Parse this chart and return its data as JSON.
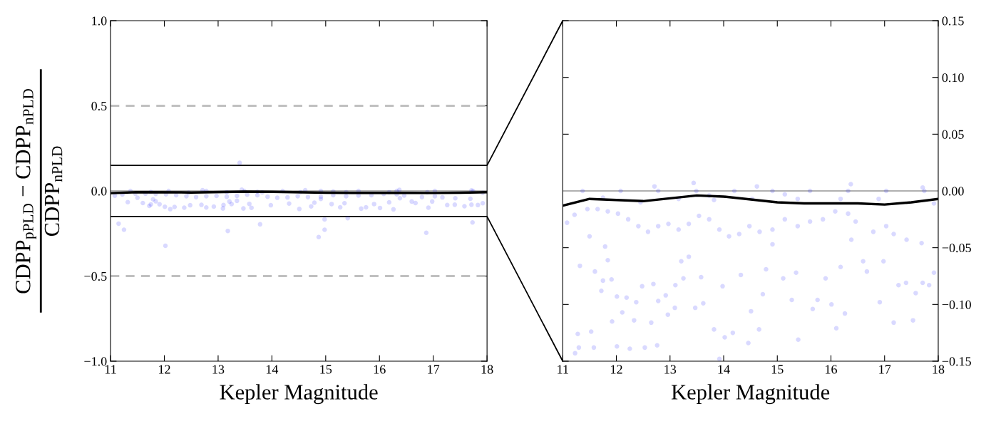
{
  "chart_data": [
    {
      "type": "scatter",
      "xlabel": "Kepler Magnitude",
      "ylabel": "CDPP$_{pPLD}$ − CDPP$_{nPLD}$\nCDPP$_{nPLD}$",
      "xlim": [
        11,
        18
      ],
      "xticks": [
        11,
        12,
        13,
        14,
        15,
        16,
        17,
        18
      ],
      "ylim": [
        -1.0,
        1.0
      ],
      "yticks": [
        {
          "value": -1.0,
          "label": "−1.0"
        },
        {
          "value": -0.5,
          "label": "−0.5"
        },
        {
          "value": 0.0,
          "label": "0.0"
        },
        {
          "value": 0.5,
          "label": "0.5"
        },
        {
          "value": 1.0,
          "label": "1.0"
        }
      ],
      "ref_lines": [
        {
          "axis": "y",
          "value": 0.5,
          "color": "#c0c0c0",
          "line_style": "dashed"
        },
        {
          "axis": "y",
          "value": -0.5,
          "color": "#c0c0c0",
          "line_style": "dashed"
        },
        {
          "axis": "y",
          "value": 0.0,
          "color": "#b0b0b0",
          "line_style": "solid"
        },
        {
          "axis": "y",
          "value": 0.15,
          "color": "#000000",
          "line_style": "solid"
        },
        {
          "axis": "y",
          "value": -0.15,
          "color": "#000000",
          "line_style": "solid"
        }
      ],
      "series": [
        {
          "color": "#0000ff",
          "marker": "circle",
          "x": [
            13.4,
            11.15,
            11.25,
            13.18,
            13.78,
            14.87,
            14.98,
            14.98,
            15.41,
            16.87,
            17.73,
            12.02,
            11.08,
            11.22,
            11.32,
            11.5,
            11.6,
            11.72,
            11.75,
            11.79,
            11.84,
            11.91,
            12.01,
            12.11,
            12.19,
            12.37,
            12.48,
            12.69,
            12.78,
            12.92,
            13.09,
            13.1,
            13.25,
            13.21,
            13.35,
            13.47,
            13.58,
            13.62,
            13.98,
            14.32,
            14.51,
            14.73,
            14.79,
            14.91,
            15.11,
            15.27,
            15.35,
            15.66,
            15.75,
            15.9,
            16.01,
            16.26,
            16.18,
            16.38,
            16.6,
            16.67,
            16.91,
            16.98,
            17.26,
            17.4,
            17.58,
            17.71,
            17.83,
            17.92,
            17.69,
            17.41,
            17.17,
            17.03,
            16.79,
            16.46,
            16.32,
            16.08,
            15.85,
            15.61,
            15.38,
            15.14,
            14.91,
            14.67,
            14.48,
            14.29,
            14.1,
            13.92,
            13.73,
            13.54,
            13.35,
            13.16,
            12.97,
            12.78,
            12.59,
            12.41,
            12.22,
            12.03,
            11.84,
            11.65,
            11.46,
            11.37,
            12.08,
            12.78,
            13.49,
            14.2,
            14.91,
            15.61,
            16.32,
            17.03,
            17.74,
            13.44,
            16.37,
            12.71,
            14.62,
            17.71,
            11.75,
            12.45,
            13.16,
            13.82,
            14.53,
            15.38,
            16.18,
            16.89,
            17.92,
            13.73,
            15.14
          ],
          "values": [
            0.165,
            -0.192,
            -0.228,
            -0.235,
            -0.196,
            -0.271,
            -0.228,
            -0.167,
            -0.16,
            -0.246,
            -0.185,
            -0.322,
            -0.028,
            -0.021,
            -0.066,
            -0.04,
            -0.071,
            -0.088,
            -0.079,
            -0.049,
            -0.061,
            -0.078,
            -0.093,
            -0.107,
            -0.094,
            -0.098,
            -0.084,
            -0.082,
            -0.097,
            -0.092,
            -0.103,
            -0.083,
            -0.077,
            -0.062,
            -0.058,
            -0.103,
            -0.076,
            -0.099,
            -0.084,
            -0.074,
            -0.106,
            -0.091,
            -0.069,
            -0.047,
            -0.077,
            -0.096,
            -0.072,
            -0.104,
            -0.096,
            -0.077,
            -0.1,
            -0.108,
            -0.067,
            -0.043,
            -0.062,
            -0.071,
            -0.098,
            -0.062,
            -0.083,
            -0.081,
            -0.09,
            -0.081,
            -0.083,
            -0.072,
            -0.046,
            -0.043,
            -0.038,
            -0.031,
            -0.036,
            -0.027,
            -0.02,
            -0.018,
            -0.025,
            -0.027,
            -0.031,
            -0.025,
            -0.034,
            -0.036,
            -0.031,
            -0.038,
            -0.04,
            -0.034,
            -0.025,
            -0.022,
            -0.029,
            -0.034,
            -0.029,
            -0.031,
            -0.036,
            -0.031,
            -0.025,
            -0.02,
            -0.018,
            -0.016,
            -0.016,
            0.0,
            0.0,
            0.0,
            0.0,
            0.0,
            0.0,
            0.0,
            0.0,
            0.0,
            0.0,
            0.007,
            0.006,
            0.004,
            0.004,
            0.003,
            -0.006,
            -0.01,
            -0.007,
            -0.008,
            -0.007,
            -0.007,
            -0.007,
            -0.007,
            -0.011,
            -0.004,
            -0.003
          ]
        },
        {
          "type": "line",
          "color": "#000000",
          "marker": "none",
          "line_style": "solid",
          "x": [
            11,
            11.5,
            12.5,
            13.5,
            14,
            15,
            15.5,
            16,
            16.5,
            17,
            17.5,
            18
          ],
          "values": [
            -0.013,
            -0.007,
            -0.009,
            -0.004,
            -0.005,
            -0.01,
            -0.011,
            -0.011,
            -0.011,
            -0.012,
            -0.01,
            -0.007
          ]
        }
      ]
    },
    {
      "type": "scatter",
      "xlabel": "Kepler Magnitude",
      "xlim": [
        11,
        18
      ],
      "xticks": [
        11,
        12,
        13,
        14,
        15,
        16,
        17,
        18
      ],
      "y2lim": [
        -0.15,
        0.15
      ],
      "y2ticks": [
        {
          "value": -0.15,
          "label": "−0.15"
        },
        {
          "value": -0.1,
          "label": "−0.10"
        },
        {
          "value": -0.05,
          "label": "−0.05"
        },
        {
          "value": 0.0,
          "label": "0.00"
        },
        {
          "value": 0.05,
          "label": "0.05"
        },
        {
          "value": 0.1,
          "label": "0.10"
        },
        {
          "value": 0.15,
          "label": "0.15"
        }
      ],
      "ref_lines": [
        {
          "axis": "y2",
          "value": 0.0,
          "color": "#b0b0b0",
          "line_style": "solid"
        }
      ],
      "series": [
        {
          "axis": "y2",
          "color": "#0000ff",
          "marker": "circle",
          "x": [
            11.08,
            11.22,
            11.32,
            11.5,
            11.6,
            11.53,
            11.28,
            11.23,
            11.3,
            11.58,
            11.72,
            11.75,
            11.79,
            11.84,
            11.91,
            11.92,
            12.01,
            12.01,
            12.11,
            12.19,
            12.25,
            12.33,
            12.37,
            12.48,
            12.53,
            12.69,
            12.65,
            12.76,
            12.78,
            12.92,
            12.96,
            13.09,
            13.1,
            13.25,
            13.21,
            13.35,
            13.47,
            13.58,
            13.62,
            13.82,
            13.92,
            13.98,
            14.02,
            14.17,
            14.32,
            14.46,
            14.51,
            14.66,
            14.73,
            14.79,
            14.91,
            15.11,
            15.27,
            15.39,
            15.35,
            15.66,
            15.75,
            15.9,
            16.01,
            16.1,
            16.26,
            16.18,
            16.38,
            16.6,
            16.67,
            16.91,
            16.98,
            17.17,
            17.26,
            17.4,
            17.53,
            17.58,
            17.71,
            17.83,
            17.92,
            17.69,
            17.41,
            17.17,
            17.03,
            16.79,
            16.46,
            16.32,
            16.08,
            15.85,
            15.61,
            15.38,
            15.14,
            14.91,
            14.67,
            14.48,
            14.29,
            14.1,
            13.92,
            13.73,
            13.54,
            13.35,
            13.16,
            12.97,
            12.78,
            12.59,
            12.41,
            12.22,
            12.03,
            11.84,
            11.65,
            11.46,
            11.37,
            12.08,
            12.78,
            13.49,
            14.2,
            14.91,
            15.61,
            16.32,
            17.03,
            17.74,
            13.44,
            16.37,
            12.71,
            14.62,
            17.71,
            11.75,
            12.45,
            13.16,
            13.82,
            14.53,
            15.38,
            16.18,
            16.89,
            17.92,
            13.73,
            15.14
          ],
          "values": [
            -0.028,
            -0.021,
            -0.066,
            -0.04,
            -0.071,
            -0.124,
            -0.126,
            -0.143,
            -0.138,
            -0.138,
            -0.088,
            -0.079,
            -0.049,
            -0.061,
            -0.078,
            -0.115,
            -0.137,
            -0.093,
            -0.107,
            -0.094,
            -0.139,
            -0.114,
            -0.098,
            -0.084,
            -0.138,
            -0.082,
            -0.116,
            -0.136,
            -0.097,
            -0.092,
            -0.109,
            -0.103,
            -0.083,
            -0.077,
            -0.062,
            -0.058,
            -0.103,
            -0.076,
            -0.099,
            -0.122,
            -0.148,
            -0.084,
            -0.129,
            -0.125,
            -0.074,
            -0.134,
            -0.106,
            -0.122,
            -0.091,
            -0.069,
            -0.047,
            -0.077,
            -0.096,
            -0.131,
            -0.072,
            -0.104,
            -0.096,
            -0.077,
            -0.1,
            -0.121,
            -0.108,
            -0.067,
            -0.043,
            -0.062,
            -0.071,
            -0.098,
            -0.062,
            -0.116,
            -0.083,
            -0.081,
            -0.114,
            -0.09,
            -0.081,
            -0.083,
            -0.072,
            -0.046,
            -0.043,
            -0.038,
            -0.031,
            -0.036,
            -0.027,
            -0.02,
            -0.018,
            -0.025,
            -0.027,
            -0.031,
            -0.025,
            -0.034,
            -0.036,
            -0.031,
            -0.038,
            -0.04,
            -0.034,
            -0.025,
            -0.022,
            -0.029,
            -0.034,
            -0.029,
            -0.031,
            -0.036,
            -0.031,
            -0.025,
            -0.02,
            -0.018,
            -0.016,
            -0.016,
            0.0,
            0.0,
            0.0,
            0.0,
            0.0,
            0.0,
            0.0,
            0.0,
            0.0,
            0.0,
            0.007,
            0.006,
            0.004,
            0.004,
            0.003,
            -0.006,
            -0.01,
            -0.007,
            -0.008,
            -0.007,
            -0.007,
            -0.007,
            -0.007,
            -0.011,
            -0.004,
            -0.003
          ]
        },
        {
          "type": "line",
          "axis": "y2",
          "color": "#000000",
          "marker": "none",
          "line_style": "solid",
          "x": [
            11,
            11.5,
            12.5,
            13.5,
            14,
            15,
            15.5,
            16,
            16.5,
            17,
            17.5,
            18
          ],
          "values": [
            -0.013,
            -0.007,
            -0.009,
            -0.004,
            -0.005,
            -0.01,
            -0.011,
            -0.011,
            -0.011,
            -0.012,
            -0.01,
            -0.007
          ]
        }
      ]
    }
  ]
}
